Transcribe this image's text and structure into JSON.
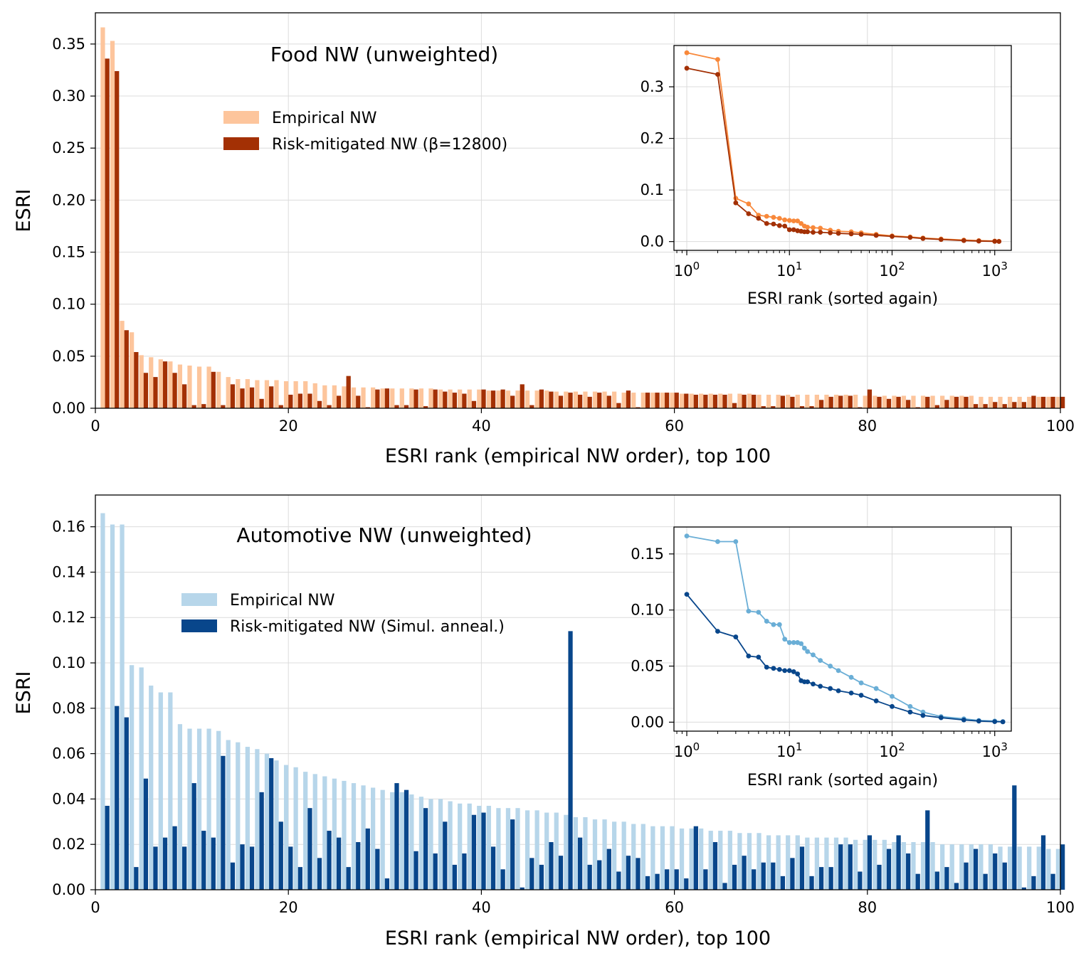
{
  "chart_data": [
    {
      "type": "bar",
      "title": "Food NW (unweighted)",
      "xlabel": "ESRI rank (empirical NW order), top 100",
      "ylabel": "ESRI",
      "xlim": [
        0,
        100
      ],
      "ylim": [
        0,
        0.38
      ],
      "grid": true,
      "xticks": [
        "0",
        "20",
        "40",
        "60",
        "80",
        "100"
      ],
      "yticks": [
        "0.00",
        "0.05",
        "0.10",
        "0.15",
        "0.20",
        "0.25",
        "0.30",
        "0.35"
      ],
      "legend_position": "upper-center",
      "colors": {
        "empirical": "#fdc59c",
        "mitigated": "#a33004",
        "inset_empirical": "#f8883a",
        "inset_mitigated": "#a33004"
      },
      "series": [
        {
          "name": "Empirical NW",
          "values": [
            0.366,
            0.353,
            0.084,
            0.073,
            0.051,
            0.049,
            0.047,
            0.045,
            0.042,
            0.041,
            0.04,
            0.04,
            0.035,
            0.03,
            0.028,
            0.028,
            0.027,
            0.027,
            0.027,
            0.026,
            0.026,
            0.026,
            0.024,
            0.022,
            0.022,
            0.021,
            0.02,
            0.02,
            0.02,
            0.019,
            0.019,
            0.019,
            0.019,
            0.019,
            0.019,
            0.018,
            0.018,
            0.018,
            0.018,
            0.018,
            0.017,
            0.017,
            0.017,
            0.017,
            0.017,
            0.017,
            0.017,
            0.016,
            0.016,
            0.016,
            0.016,
            0.016,
            0.016,
            0.016,
            0.015,
            0.015,
            0.015,
            0.015,
            0.015,
            0.015,
            0.014,
            0.014,
            0.014,
            0.014,
            0.014,
            0.014,
            0.014,
            0.014,
            0.013,
            0.013,
            0.013,
            0.013,
            0.013,
            0.013,
            0.013,
            0.013,
            0.013,
            0.013,
            0.013,
            0.012,
            0.012,
            0.012,
            0.012,
            0.012,
            0.012,
            0.012,
            0.012,
            0.012,
            0.012,
            0.012,
            0.012,
            0.011,
            0.011,
            0.011,
            0.011,
            0.011,
            0.011,
            0.011,
            0.011,
            0.011
          ]
        },
        {
          "name": "Risk-mitigated NW (β=12800)",
          "values": [
            0.336,
            0.324,
            0.075,
            0.054,
            0.034,
            0.03,
            0.045,
            0.034,
            0.023,
            0.003,
            0.004,
            0.035,
            0.003,
            0.023,
            0.019,
            0.02,
            0.009,
            0.021,
            0.003,
            0.013,
            0.014,
            0.014,
            0.007,
            0.003,
            0.012,
            0.031,
            0.012,
            0.001,
            0.018,
            0.019,
            0.003,
            0.003,
            0.018,
            0.002,
            0.018,
            0.016,
            0.015,
            0.014,
            0.007,
            0.018,
            0.017,
            0.018,
            0.012,
            0.023,
            0.003,
            0.018,
            0.016,
            0.012,
            0.015,
            0.013,
            0.011,
            0.015,
            0.012,
            0.005,
            0.017,
            0.001,
            0.015,
            0.015,
            0.015,
            0.015,
            0.014,
            0.013,
            0.013,
            0.013,
            0.013,
            0.005,
            0.013,
            0.013,
            0.002,
            0.002,
            0.012,
            0.011,
            0.002,
            0.002,
            0.008,
            0.011,
            0.012,
            0.012,
            0.001,
            0.018,
            0.011,
            0.009,
            0.011,
            0.008,
            0.001,
            0.011,
            0.003,
            0.008,
            0.011,
            0.011,
            0.004,
            0.004,
            0.006,
            0.004,
            0.006,
            0.006,
            0.012,
            0.011,
            0.011,
            0.011
          ]
        }
      ],
      "inset": {
        "type": "line",
        "xscale": "log",
        "xlabel": "ESRI rank (sorted again)",
        "xlim": [
          0.75,
          1450
        ],
        "ylim": [
          -0.017,
          0.38
        ],
        "xticks": [
          "10^0",
          "10^1",
          "10^2",
          "10^3"
        ],
        "yticks": [
          "0.0",
          "0.1",
          "0.2",
          "0.3"
        ],
        "series": [
          {
            "name": "Empirical NW",
            "x": [
              1,
              2,
              3,
              4,
              5,
              6,
              7,
              8,
              9,
              10,
              11,
              12,
              13,
              14,
              15,
              17,
              20,
              25,
              30,
              40,
              50,
              70,
              100,
              150,
              200,
              300,
              500,
              700,
              1000,
              1100
            ],
            "y": [
              0.366,
              0.353,
              0.084,
              0.073,
              0.051,
              0.049,
              0.047,
              0.045,
              0.042,
              0.041,
              0.04,
              0.04,
              0.035,
              0.03,
              0.028,
              0.027,
              0.026,
              0.022,
              0.02,
              0.019,
              0.017,
              0.014,
              0.011,
              0.009,
              0.007,
              0.005,
              0.003,
              0.002,
              0.001,
              0.0005
            ]
          },
          {
            "name": "Risk-mitigated NW",
            "x": [
              1,
              2,
              3,
              4,
              5,
              6,
              7,
              8,
              9,
              10,
              11,
              12,
              13,
              14,
              15,
              17,
              20,
              25,
              30,
              40,
              50,
              70,
              100,
              150,
              200,
              300,
              500,
              700,
              1000,
              1100
            ],
            "y": [
              0.336,
              0.324,
              0.075,
              0.054,
              0.045,
              0.035,
              0.034,
              0.031,
              0.03,
              0.023,
              0.023,
              0.021,
              0.02,
              0.019,
              0.019,
              0.018,
              0.018,
              0.017,
              0.016,
              0.015,
              0.014,
              0.012,
              0.01,
              0.008,
              0.006,
              0.004,
              0.002,
              0.001,
              0.0005,
              0.0002
            ]
          }
        ]
      }
    },
    {
      "type": "bar",
      "title": "Automotive NW (unweighted)",
      "xlabel": "ESRI rank (empirical NW order), top 100",
      "ylabel": "ESRI",
      "xlim": [
        0,
        100
      ],
      "ylim": [
        0,
        0.174
      ],
      "grid": true,
      "xticks": [
        "0",
        "20",
        "40",
        "60",
        "80",
        "100"
      ],
      "yticks": [
        "0.00",
        "0.02",
        "0.04",
        "0.06",
        "0.08",
        "0.10",
        "0.12",
        "0.14",
        "0.16"
      ],
      "legend_position": "upper-center",
      "colors": {
        "empirical": "#b7d6ea",
        "mitigated": "#08468b",
        "inset_empirical": "#6aaed6",
        "inset_mitigated": "#08468b"
      },
      "series": [
        {
          "name": "Empirical NW",
          "values": [
            0.166,
            0.161,
            0.161,
            0.099,
            0.098,
            0.09,
            0.087,
            0.087,
            0.073,
            0.071,
            0.071,
            0.071,
            0.07,
            0.066,
            0.065,
            0.063,
            0.062,
            0.06,
            0.057,
            0.055,
            0.054,
            0.052,
            0.051,
            0.05,
            0.049,
            0.048,
            0.047,
            0.046,
            0.045,
            0.044,
            0.043,
            0.043,
            0.042,
            0.041,
            0.04,
            0.04,
            0.039,
            0.038,
            0.038,
            0.037,
            0.037,
            0.036,
            0.036,
            0.036,
            0.035,
            0.035,
            0.034,
            0.034,
            0.033,
            0.032,
            0.032,
            0.031,
            0.031,
            0.03,
            0.03,
            0.029,
            0.029,
            0.028,
            0.028,
            0.028,
            0.027,
            0.027,
            0.027,
            0.026,
            0.026,
            0.026,
            0.025,
            0.025,
            0.025,
            0.024,
            0.024,
            0.024,
            0.024,
            0.023,
            0.023,
            0.023,
            0.023,
            0.023,
            0.022,
            0.022,
            0.022,
            0.022,
            0.021,
            0.021,
            0.021,
            0.021,
            0.021,
            0.02,
            0.02,
            0.02,
            0.02,
            0.02,
            0.02,
            0.019,
            0.019,
            0.019,
            0.019,
            0.019,
            0.018,
            0.018
          ]
        },
        {
          "name": "Risk-mitigated NW (Simul. anneal.)",
          "values": [
            0.037,
            0.081,
            0.076,
            0.01,
            0.049,
            0.019,
            0.023,
            0.028,
            0.019,
            0.047,
            0.026,
            0.023,
            0.059,
            0.012,
            0.02,
            0.019,
            0.043,
            0.058,
            0.03,
            0.019,
            0.01,
            0.036,
            0.014,
            0.026,
            0.023,
            0.01,
            0.021,
            0.027,
            0.018,
            0.005,
            0.047,
            0.044,
            0.017,
            0.036,
            0.016,
            0.03,
            0.011,
            0.016,
            0.033,
            0.034,
            0.019,
            0.009,
            0.031,
            0.001,
            0.014,
            0.011,
            0.021,
            0.015,
            0.114,
            0.023,
            0.011,
            0.013,
            0.018,
            0.008,
            0.015,
            0.014,
            0.006,
            0.007,
            0.009,
            0.009,
            0.005,
            0.028,
            0.009,
            0.021,
            0.003,
            0.011,
            0.015,
            0.009,
            0.012,
            0.012,
            0.006,
            0.014,
            0.019,
            0.006,
            0.01,
            0.01,
            0.02,
            0.02,
            0.008,
            0.024,
            0.011,
            0.018,
            0.024,
            0.016,
            0.007,
            0.035,
            0.008,
            0.01,
            0.003,
            0.012,
            0.018,
            0.007,
            0.016,
            0.012,
            0.046,
            0.001,
            0.006,
            0.024,
            0.007,
            0.02
          ]
        }
      ],
      "inset": {
        "type": "line",
        "xscale": "log",
        "xlabel": "ESRI rank (sorted again)",
        "xlim": [
          0.75,
          1450
        ],
        "ylim": [
          -0.008,
          0.174
        ],
        "xticks": [
          "10^0",
          "10^1",
          "10^2",
          "10^3"
        ],
        "yticks": [
          "0.00",
          "0.05",
          "0.10",
          "0.15"
        ],
        "series": [
          {
            "name": "Empirical NW",
            "x": [
              1,
              2,
              3,
              4,
              5,
              6,
              7,
              8,
              9,
              10,
              11,
              12,
              13,
              14,
              15,
              17,
              20,
              25,
              30,
              40,
              50,
              70,
              100,
              150,
              200,
              300,
              500,
              700,
              1000,
              1200
            ],
            "y": [
              0.166,
              0.161,
              0.161,
              0.099,
              0.098,
              0.09,
              0.087,
              0.087,
              0.074,
              0.071,
              0.071,
              0.071,
              0.07,
              0.066,
              0.063,
              0.06,
              0.055,
              0.05,
              0.046,
              0.04,
              0.035,
              0.03,
              0.023,
              0.014,
              0.009,
              0.005,
              0.003,
              0.0015,
              0.001,
              0.0005
            ]
          },
          {
            "name": "Risk-mitigated NW",
            "x": [
              1,
              2,
              3,
              4,
              5,
              6,
              7,
              8,
              9,
              10,
              11,
              12,
              13,
              14,
              15,
              17,
              20,
              25,
              30,
              40,
              50,
              70,
              100,
              150,
              200,
              300,
              500,
              700,
              1000,
              1200
            ],
            "y": [
              0.114,
              0.081,
              0.076,
              0.059,
              0.058,
              0.049,
              0.048,
              0.047,
              0.046,
              0.046,
              0.045,
              0.043,
              0.037,
              0.036,
              0.036,
              0.034,
              0.032,
              0.03,
              0.028,
              0.026,
              0.024,
              0.019,
              0.014,
              0.009,
              0.006,
              0.004,
              0.002,
              0.001,
              0.0005,
              0.0003
            ]
          }
        ]
      }
    }
  ]
}
